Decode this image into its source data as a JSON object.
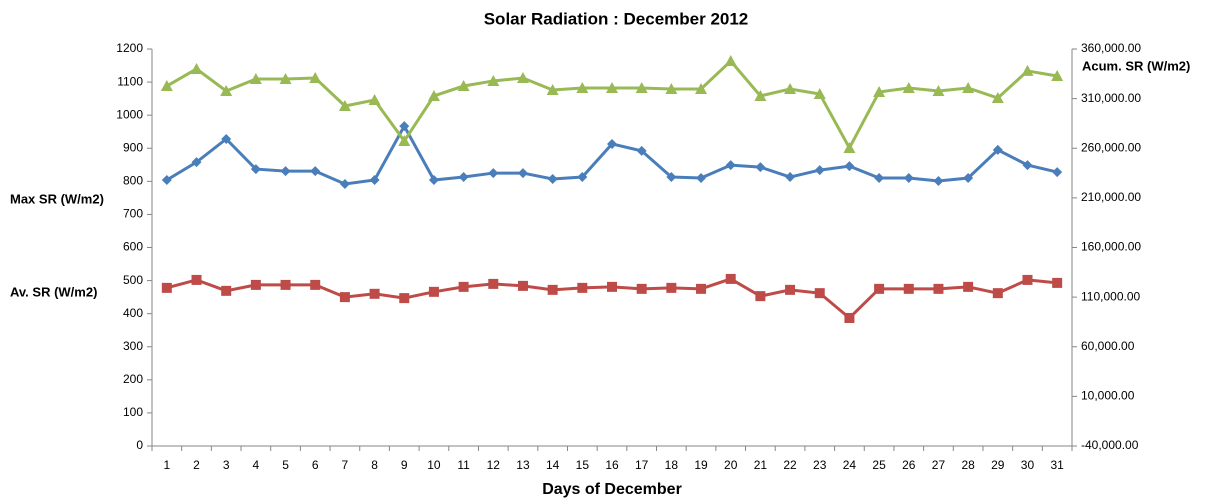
{
  "chart_data": {
    "type": "line",
    "title": "Solar Radiation  : December 2012",
    "x_label": "Days of December",
    "categories": [
      1,
      2,
      3,
      4,
      5,
      6,
      7,
      8,
      9,
      10,
      11,
      12,
      13,
      14,
      15,
      16,
      17,
      18,
      19,
      20,
      21,
      22,
      23,
      24,
      25,
      26,
      27,
      28,
      29,
      30,
      31
    ],
    "ylim": [
      0,
      1200
    ],
    "yticks": [
      0,
      100,
      200,
      300,
      400,
      500,
      600,
      700,
      800,
      900,
      1000,
      1100,
      1200
    ],
    "y2lim": [
      -40000,
      360000
    ],
    "y2ticks": [
      {
        "value": -40000,
        "label": "-40,000.00"
      },
      {
        "value": 10000,
        "label": "10,000.00"
      },
      {
        "value": 60000,
        "label": "60,000.00"
      },
      {
        "value": 110000,
        "label": "110,000.00"
      },
      {
        "value": 160000,
        "label": "160,000.00"
      },
      {
        "value": 210000,
        "label": "210,000.00"
      },
      {
        "value": 260000,
        "label": "260,000.00"
      },
      {
        "value": 310000,
        "label": "310,000.00"
      },
      {
        "value": 360000,
        "label": "360,000.00"
      }
    ],
    "grid": false,
    "series": [
      {
        "name": "Max SR (W/m2)",
        "color": "#4a7ebb",
        "marker": "diamond",
        "values": [
          804,
          858,
          928,
          837,
          831,
          831,
          792,
          804,
          967,
          804,
          813,
          825,
          825,
          807,
          813,
          913,
          892,
          813,
          810,
          849,
          843,
          813,
          834,
          846,
          810,
          810,
          801,
          810,
          895,
          849,
          828
        ]
      },
      {
        "name": "Av. SR (W/m2)",
        "color": "#be4b48",
        "marker": "square",
        "values": [
          478,
          502,
          469,
          487,
          487,
          487,
          450,
          460,
          447,
          466,
          481,
          490,
          484,
          472,
          478,
          481,
          475,
          478,
          475,
          505,
          453,
          472,
          462,
          387,
          475,
          475,
          475,
          481,
          462,
          502,
          493
        ]
      },
      {
        "name": "Acum. SR (W/m2)",
        "color": "#98b954",
        "marker": "triangle",
        "axis": "y2",
        "values": [
          322700,
          339900,
          317700,
          329800,
          329800,
          330800,
          302600,
          308600,
          267300,
          312700,
          322700,
          327800,
          330800,
          318700,
          320700,
          320700,
          320700,
          319700,
          319700,
          347900,
          312700,
          319700,
          314700,
          260300,
          316700,
          320700,
          317700,
          320700,
          310600,
          337900,
          332800
        ]
      }
    ]
  }
}
